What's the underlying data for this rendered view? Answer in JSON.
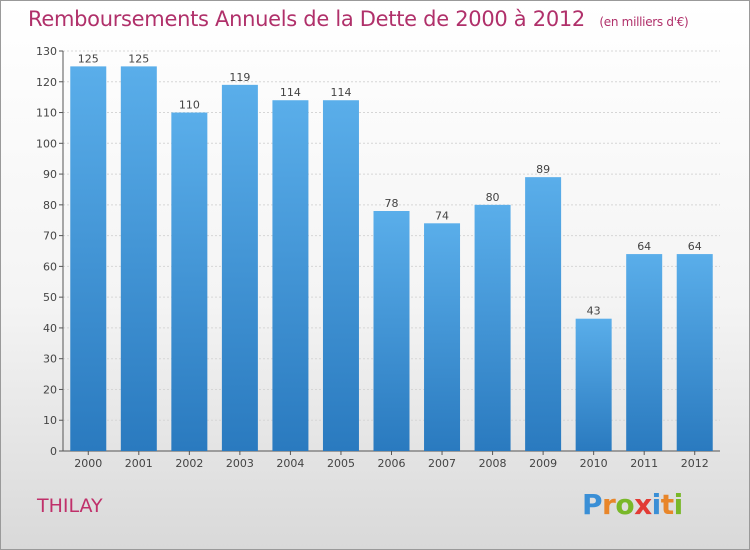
{
  "title": "Remboursements Annuels de la Dette de 2000 à 2012",
  "unit": "(en milliers d'€)",
  "location": "THILAY",
  "logo": {
    "text": "Proxiti",
    "letters": [
      {
        "ch": "P",
        "color": "#3a8fd6"
      },
      {
        "ch": "r",
        "color": "#e8862a"
      },
      {
        "ch": "o",
        "color": "#79b829"
      },
      {
        "ch": "x",
        "color": "#e23b35"
      },
      {
        "ch": "i",
        "color": "#3a8fd6"
      },
      {
        "ch": "t",
        "color": "#e8862a"
      },
      {
        "ch": "i",
        "color": "#79b829"
      }
    ]
  },
  "colors": {
    "bar_top": "#5aaeea",
    "bar_bottom": "#2a7abf",
    "title": "#b0306a",
    "axis_text": "#444444"
  },
  "chart_data": {
    "type": "bar",
    "categories": [
      "2000",
      "2001",
      "2002",
      "2003",
      "2004",
      "2005",
      "2006",
      "2007",
      "2008",
      "2009",
      "2010",
      "2011",
      "2012"
    ],
    "values": [
      125,
      125,
      110,
      119,
      114,
      114,
      78,
      74,
      80,
      89,
      43,
      64,
      64
    ],
    "ylim": [
      0,
      130
    ],
    "yticks": [
      0,
      10,
      20,
      30,
      40,
      50,
      60,
      70,
      80,
      90,
      100,
      110,
      120,
      130
    ],
    "grid": true,
    "legend": "none"
  }
}
